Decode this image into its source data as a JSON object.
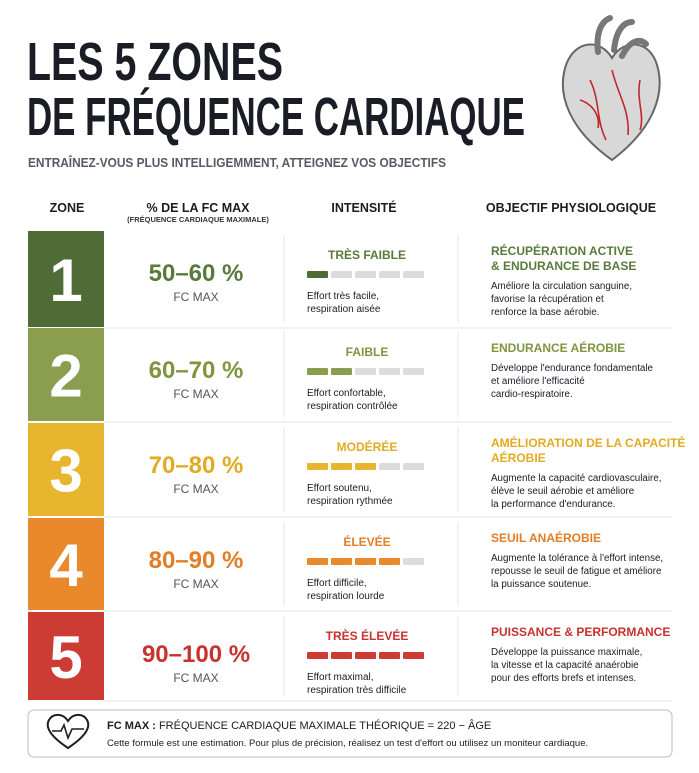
{
  "header": {
    "title_lines": [
      "LES 5 ZONES",
      "DE FRÉQUENCE CARDIAQUE"
    ],
    "subtitle": "ENTRAÎNEZ-VOUS PLUS INTELLIGEMMENT, ATTEIGNEZ VOS OBJECTIFS"
  },
  "table": {
    "columns": {
      "zone": "ZONE",
      "percent": "% DE LA FC MAX",
      "percent_note": "(FRÉQUENCE CARDIAQUE MAXIMALE)",
      "intensity": "INTENSITÉ",
      "objective": "OBJECTIF PHYSIOLOGIQUE"
    },
    "intensity_scale": 5,
    "rows": [
      {
        "zone": "1",
        "color": "#4f6c36",
        "text_color": "#587a3a",
        "percent": "50–60 %",
        "unit": "FC MAX",
        "intensity": "TRÈS FAIBLE",
        "intensity_level": 1,
        "intensity_desc": [
          "Effort très facile,",
          "respiration aisée"
        ],
        "objective": [
          "RÉCUPÉRATION ACTIVE",
          "& ENDURANCE DE BASE"
        ],
        "objective_desc": [
          "Améliore la circulation sanguine,",
          "favorise la récupération et",
          "renforce la base aérobie."
        ]
      },
      {
        "zone": "2",
        "color": "#8b9d4f",
        "text_color": "#7f953f",
        "percent": "60–70 %",
        "unit": "FC MAX",
        "intensity": "FAIBLE",
        "intensity_level": 2,
        "intensity_desc": [
          "Effort confortable,",
          "respiration contrôlée"
        ],
        "objective": [
          "ENDURANCE AÉROBIE"
        ],
        "objective_desc": [
          "Développe l'endurance fondamentale",
          "et améliore l'efficacité",
          "cardio-respiratoire."
        ]
      },
      {
        "zone": "3",
        "color": "#e8b52e",
        "text_color": "#e2ab22",
        "percent": "70–80 %",
        "unit": "FC MAX",
        "intensity": "MODÉRÉE",
        "intensity_level": 3,
        "intensity_desc": [
          "Effort soutenu,",
          "respiration rythmée"
        ],
        "objective": [
          "AMÉLIORATION DE LA CAPACITÉ",
          "AÉROBIE"
        ],
        "objective_desc": [
          "Augmente la capacité cardiovasculaire,",
          "élève le seuil aérobie et améliore",
          "la performance d'endurance."
        ]
      },
      {
        "zone": "4",
        "color": "#e9892c",
        "text_color": "#e27e25",
        "percent": "80–90 %",
        "unit": "FC MAX",
        "intensity": "ÉLEVÉE",
        "intensity_level": 4,
        "intensity_desc": [
          "Effort difficile,",
          "respiration lourde"
        ],
        "objective": [
          "SEUIL ANAÉROBIE"
        ],
        "objective_desc": [
          "Augmente la tolérance à l'effort intense,",
          "repousse le seuil de fatigue et améliore",
          "la puissance soutenue."
        ]
      },
      {
        "zone": "5",
        "color": "#cc3c34",
        "text_color": "#c8322f",
        "percent": "90–100 %",
        "unit": "FC MAX",
        "intensity": "TRÈS ÉLEVÉE",
        "intensity_level": 5,
        "intensity_desc": [
          "Effort maximal,",
          "respiration très difficile"
        ],
        "objective": [
          "PUISSANCE & PERFORMANCE"
        ],
        "objective_desc": [
          "Développe la puissance maximale,",
          "la vitesse et la capacité anaérobie",
          "pour des efforts brefs et intenses."
        ]
      }
    ]
  },
  "footer": {
    "label": "FC MAX :",
    "formula": " FRÉQUENCE CARDIAQUE MAXIMALE THÉORIQUE = 220 − ÂGE",
    "note": "Cette formule est une estimation. Pour plus de précision, réalisez un test d'effort ou utilisez un moniteur cardiaque."
  }
}
